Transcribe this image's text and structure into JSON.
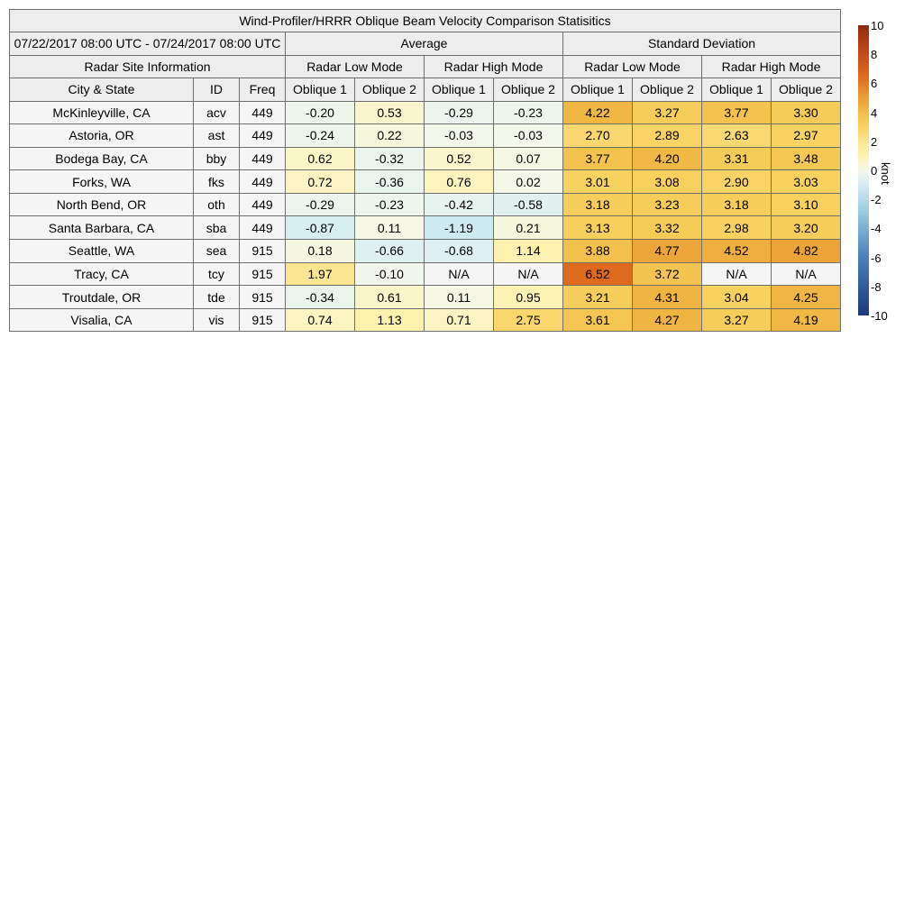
{
  "title": "Wind-Profiler/HRRR Oblique Beam Velocity Comparison Statisitics",
  "date_range": "07/22/2017 08:00 UTC - 07/24/2017 08:00 UTC",
  "groups": {
    "average": "Average",
    "std": "Standard Deviation",
    "site_info": "Radar Site Information"
  },
  "modes": {
    "low": "Radar Low Mode",
    "high": "Radar High Mode"
  },
  "columns": {
    "city": "City & State",
    "id": "ID",
    "freq": "Freq",
    "oblique1": "Oblique 1",
    "oblique2": "Oblique 2"
  },
  "chart_data": {
    "type": "table",
    "title": "Wind-Profiler/HRRR Oblique Beam Velocity Comparison Statisitics",
    "value_columns": [
      "Average / Radar Low Mode / Oblique 1",
      "Average / Radar Low Mode / Oblique 2",
      "Average / Radar High Mode / Oblique 1",
      "Average / Radar High Mode / Oblique 2",
      "Standard Deviation / Radar Low Mode / Oblique 1",
      "Standard Deviation / Radar Low Mode / Oblique 2",
      "Standard Deviation / Radar High Mode / Oblique 1",
      "Standard Deviation / Radar High Mode / Oblique 2"
    ],
    "rows": [
      {
        "city": "McKinleyville, CA",
        "id": "acv",
        "freq": "449",
        "values": [
          "-0.20",
          "0.53",
          "-0.29",
          "-0.23",
          "4.22",
          "3.27",
          "3.77",
          "3.30"
        ]
      },
      {
        "city": "Astoria, OR",
        "id": "ast",
        "freq": "449",
        "values": [
          "-0.24",
          "0.22",
          "-0.03",
          "-0.03",
          "2.70",
          "2.89",
          "2.63",
          "2.97"
        ]
      },
      {
        "city": "Bodega Bay, CA",
        "id": "bby",
        "freq": "449",
        "values": [
          "0.62",
          "-0.32",
          "0.52",
          "0.07",
          "3.77",
          "4.20",
          "3.31",
          "3.48"
        ]
      },
      {
        "city": "Forks, WA",
        "id": "fks",
        "freq": "449",
        "values": [
          "0.72",
          "-0.36",
          "0.76",
          "0.02",
          "3.01",
          "3.08",
          "2.90",
          "3.03"
        ]
      },
      {
        "city": "North Bend, OR",
        "id": "oth",
        "freq": "449",
        "values": [
          "-0.29",
          "-0.23",
          "-0.42",
          "-0.58",
          "3.18",
          "3.23",
          "3.18",
          "3.10"
        ]
      },
      {
        "city": "Santa Barbara, CA",
        "id": "sba",
        "freq": "449",
        "values": [
          "-0.87",
          "0.11",
          "-1.19",
          "0.21",
          "3.13",
          "3.32",
          "2.98",
          "3.20"
        ]
      },
      {
        "city": "Seattle, WA",
        "id": "sea",
        "freq": "915",
        "values": [
          "0.18",
          "-0.66",
          "-0.68",
          "1.14",
          "3.88",
          "4.77",
          "4.52",
          "4.82"
        ]
      },
      {
        "city": "Tracy, CA",
        "id": "tcy",
        "freq": "915",
        "values": [
          "1.97",
          "-0.10",
          "N/A",
          "N/A",
          "6.52",
          "3.72",
          "N/A",
          "N/A"
        ]
      },
      {
        "city": "Troutdale, OR",
        "id": "tde",
        "freq": "915",
        "values": [
          "-0.34",
          "0.61",
          "0.11",
          "0.95",
          "3.21",
          "4.31",
          "3.04",
          "4.25"
        ]
      },
      {
        "city": "Visalia, CA",
        "id": "vis",
        "freq": "915",
        "values": [
          "0.74",
          "1.13",
          "0.71",
          "2.75",
          "3.61",
          "4.27",
          "3.27",
          "4.19"
        ]
      }
    ],
    "colorbar": {
      "unit": "knot",
      "range": [
        -10,
        10
      ],
      "ticks": [
        "10",
        "8",
        "6",
        "4",
        "2",
        "0",
        "-2",
        "-4",
        "-6",
        "-8",
        "-10"
      ],
      "stops": [
        {
          "v": -10,
          "c": "#1a3a78"
        },
        {
          "v": -6,
          "c": "#4a7fb7"
        },
        {
          "v": -3,
          "c": "#96c8df"
        },
        {
          "v": -1,
          "c": "#d3ecf4"
        },
        {
          "v": 0,
          "c": "#f5f8ea"
        },
        {
          "v": 1,
          "c": "#fdf3b2"
        },
        {
          "v": 2,
          "c": "#fde691"
        },
        {
          "v": 3,
          "c": "#f8d260"
        },
        {
          "v": 4,
          "c": "#f1be48"
        },
        {
          "v": 5,
          "c": "#eb9e33"
        },
        {
          "v": 6.5,
          "c": "#de6a1d"
        },
        {
          "v": 8,
          "c": "#c54a17"
        },
        {
          "v": 10,
          "c": "#8f2a10"
        }
      ],
      "na_color": "#f5f5f5"
    }
  }
}
